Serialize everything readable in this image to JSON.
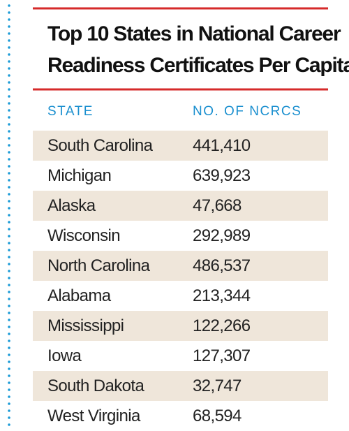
{
  "header": {
    "title_lines": [
      "Top 10 States in National Career",
      "Readiness Certificates Per Capita"
    ]
  },
  "table": {
    "columns": [
      "STATE",
      "NO. OF NCRCS"
    ],
    "rows": [
      [
        "South Carolina",
        "441,410"
      ],
      [
        "Michigan",
        "639,923"
      ],
      [
        "Alaska",
        "47,668"
      ],
      [
        "Wisconsin",
        "292,989"
      ],
      [
        "North Carolina",
        "486,537"
      ],
      [
        "Alabama",
        "213,344"
      ],
      [
        "Mississippi",
        "122,266"
      ],
      [
        "Iowa",
        "127,307"
      ],
      [
        "South Dakota",
        "32,747"
      ],
      [
        "West Virginia",
        "68,594"
      ]
    ]
  }
}
